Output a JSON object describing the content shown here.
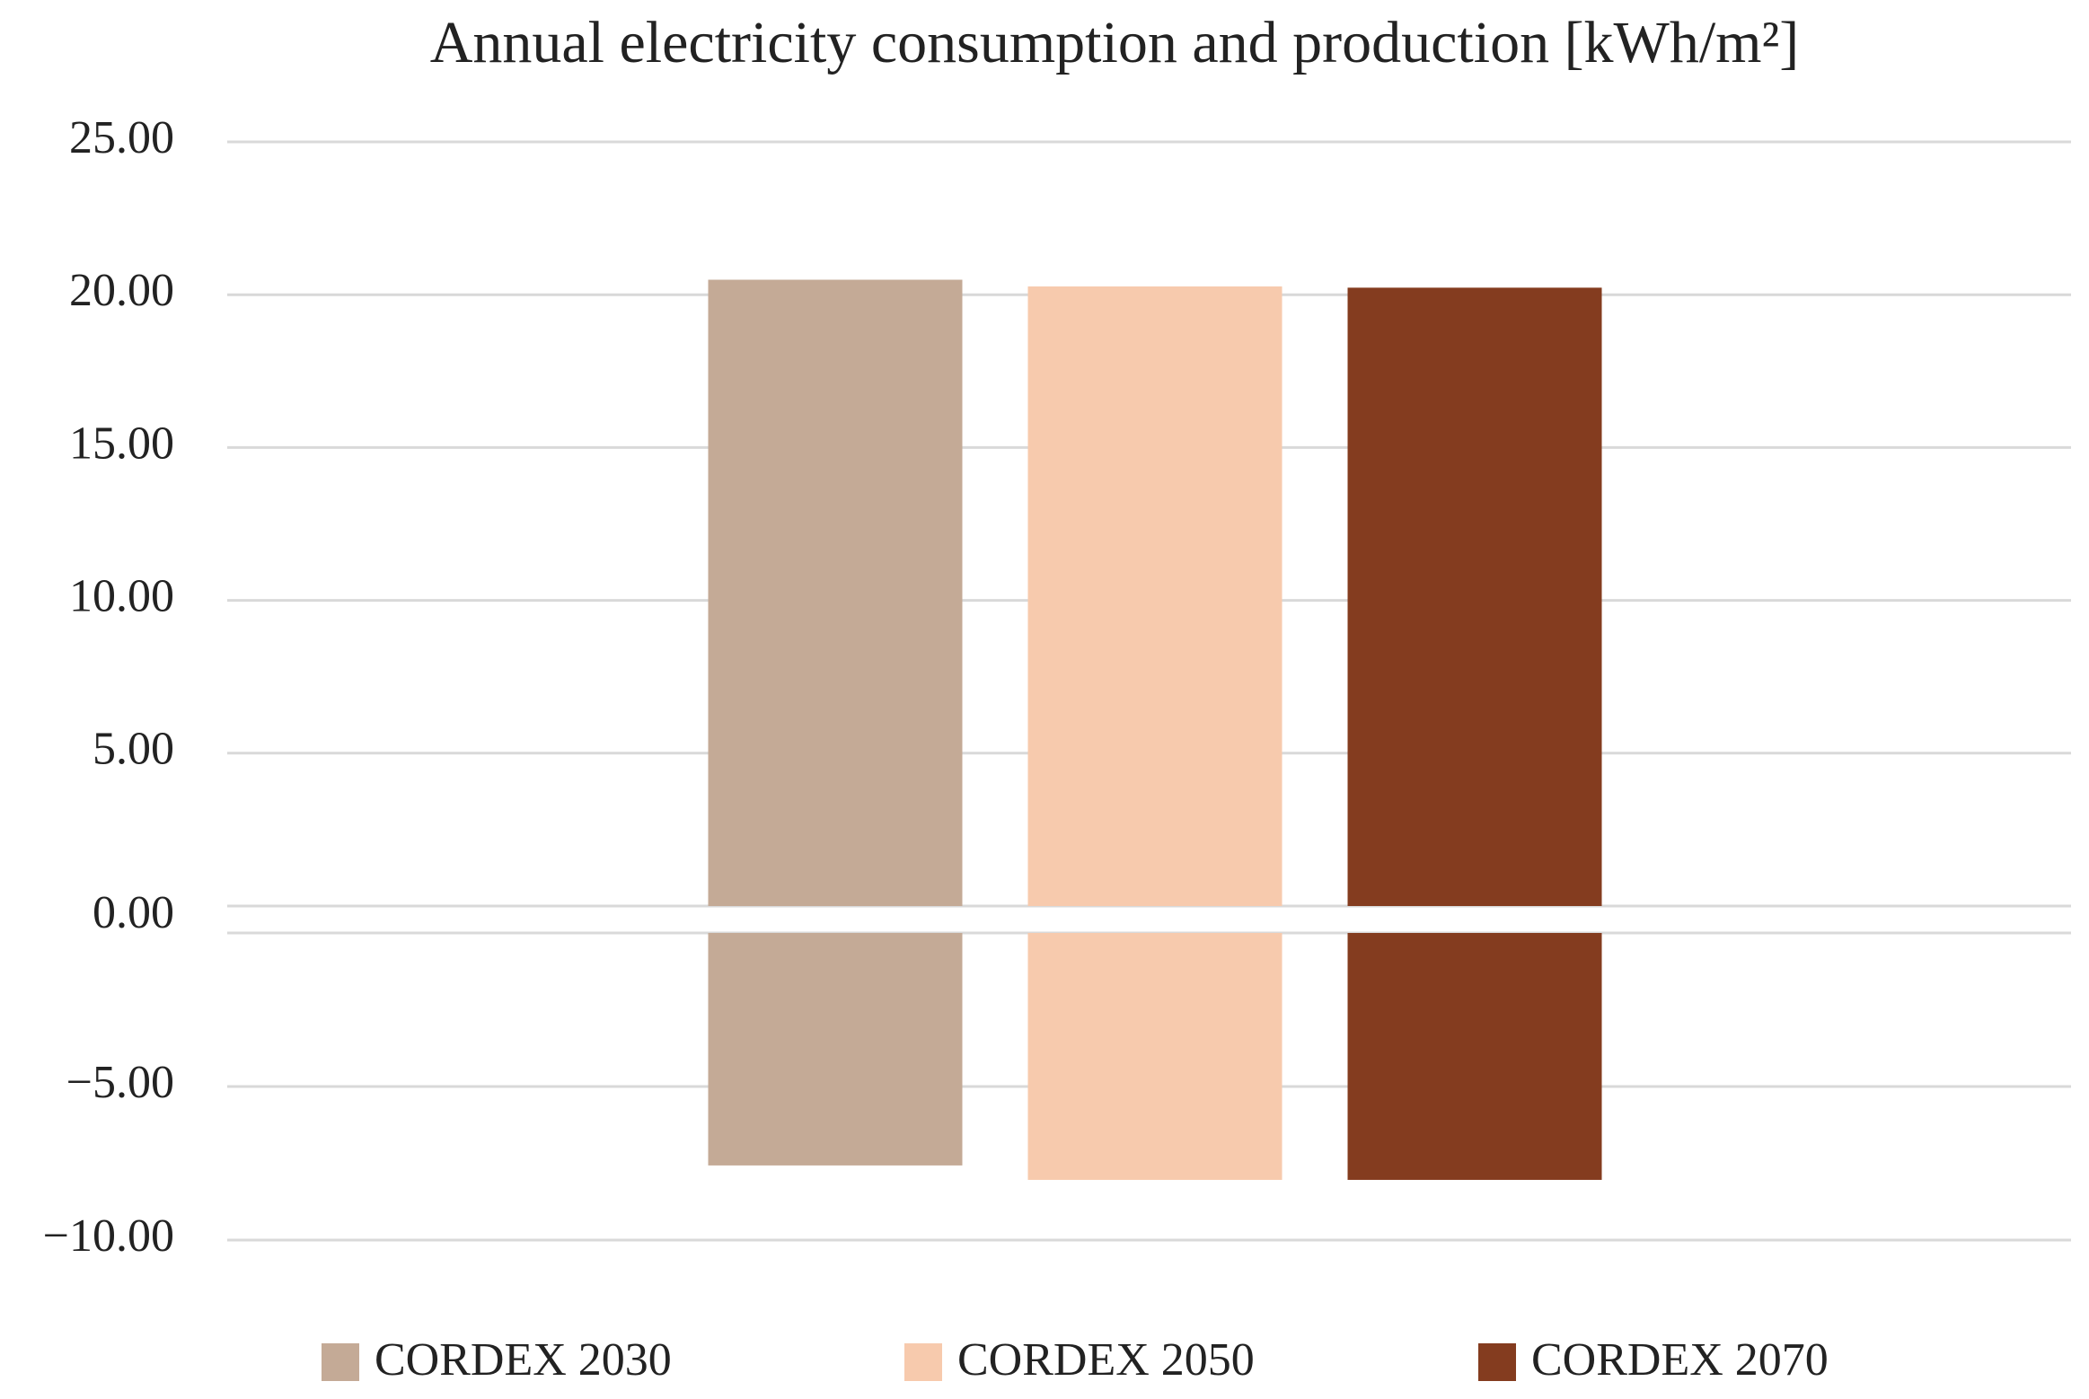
{
  "chart_data": [
    {
      "type": "bar",
      "title": "Annual electricity consumption and production  [kWh/m²]",
      "series": [
        {
          "name": "CORDEX 2030",
          "color": "#c4aa96",
          "values": [
            20.49
          ]
        },
        {
          "name": "CORDEX 2050",
          "color": "#f7caad",
          "values": [
            20.27
          ]
        },
        {
          "name": "CORDEX 2070",
          "color": "#843c1f",
          "values": [
            20.23
          ]
        }
      ],
      "ylim": [
        0,
        25
      ],
      "yticks": [
        {
          "value": 0,
          "label": "0.00"
        },
        {
          "value": 5,
          "label": "5.00"
        },
        {
          "value": 10,
          "label": "10.00"
        },
        {
          "value": 15,
          "label": "15.00"
        },
        {
          "value": 20,
          "label": "20.00"
        },
        {
          "value": 25,
          "label": "25.00"
        }
      ],
      "grid": true,
      "legend": "bottom"
    },
    {
      "type": "bar",
      "series": [
        {
          "color": "#c4aa96",
          "values": [
            -7.57
          ]
        },
        {
          "color": "#f7caad",
          "values": [
            -8.04
          ]
        },
        {
          "color": "#843c1f",
          "values": [
            -8.04
          ]
        }
      ],
      "ylim": [
        -10,
        0
      ],
      "yticks": [
        {
          "value": -10,
          "label": "−10.00"
        },
        {
          "value": -5,
          "label": "−5.00"
        }
      ],
      "grid": true
    }
  ]
}
